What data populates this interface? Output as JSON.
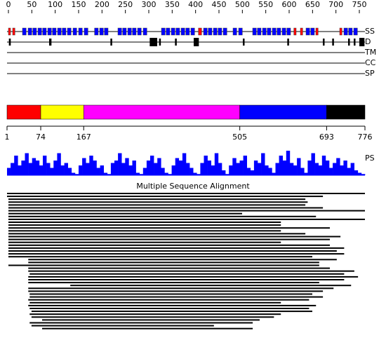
{
  "axis": {
    "lim": [
      0,
      750
    ],
    "ticks": [
      0,
      50,
      100,
      150,
      200,
      250,
      300,
      350,
      400,
      450,
      500,
      550,
      600,
      650,
      700,
      750
    ]
  },
  "tracks": {
    "ss": {
      "label": "SS",
      "helix_color": "#0000ff",
      "strand_color": "#ff0000",
      "helix": [
        [
          30,
          38
        ],
        [
          42,
          50
        ],
        [
          52,
          60
        ],
        [
          63,
          71
        ],
        [
          73,
          81
        ],
        [
          84,
          92
        ],
        [
          94,
          102
        ],
        [
          105,
          113
        ],
        [
          115,
          123
        ],
        [
          126,
          134
        ],
        [
          138,
          146
        ],
        [
          150,
          158
        ],
        [
          162,
          170
        ],
        [
          184,
          192
        ],
        [
          195,
          203
        ],
        [
          205,
          213
        ],
        [
          234,
          242
        ],
        [
          244,
          252
        ],
        [
          255,
          263
        ],
        [
          265,
          273
        ],
        [
          276,
          284
        ],
        [
          288,
          296
        ],
        [
          327,
          335
        ],
        [
          337,
          345
        ],
        [
          348,
          356
        ],
        [
          358,
          366
        ],
        [
          369,
          377
        ],
        [
          379,
          387
        ],
        [
          390,
          398
        ],
        [
          417,
          425
        ],
        [
          427,
          435
        ],
        [
          438,
          446
        ],
        [
          448,
          456
        ],
        [
          459,
          467
        ],
        [
          480,
          488
        ],
        [
          492,
          500
        ],
        [
          522,
          530
        ],
        [
          532,
          540
        ],
        [
          543,
          551
        ],
        [
          553,
          561
        ],
        [
          564,
          572
        ],
        [
          574,
          582
        ],
        [
          585,
          593
        ],
        [
          595,
          603
        ],
        [
          636,
          644
        ],
        [
          646,
          654
        ],
        [
          717,
          725
        ],
        [
          727,
          735
        ],
        [
          738,
          746
        ]
      ],
      "strand": [
        [
          0,
          4
        ],
        [
          9,
          14
        ],
        [
          406,
          413
        ],
        [
          610,
          615
        ],
        [
          624,
          629
        ],
        [
          657,
          662
        ],
        [
          708,
          713
        ]
      ]
    },
    "d": {
      "label": "D",
      "regions": [
        [
          1,
          5
        ],
        [
          87,
          92
        ],
        [
          218,
          221
        ],
        [
          302,
          318
        ],
        [
          322,
          324
        ],
        [
          356,
          359
        ],
        [
          396,
          407
        ],
        [
          501,
          504
        ],
        [
          596,
          599
        ],
        [
          672,
          674
        ],
        [
          692,
          695
        ],
        [
          726,
          729
        ],
        [
          738,
          741
        ],
        [
          750,
          761
        ]
      ]
    },
    "tm": {
      "label": "TM"
    },
    "cc": {
      "label": "CC"
    },
    "sp": {
      "label": "SP"
    }
  },
  "domains": {
    "boundaries": [
      1,
      74,
      167,
      505,
      693,
      776
    ],
    "colors": [
      "#ff0000",
      "#ffff00",
      "#ff00ff",
      "#0000ff",
      "#000000"
    ]
  },
  "ps": {
    "label": "PS",
    "color": "#0000ff",
    "values": [
      0.3,
      0.5,
      0.8,
      0.4,
      0.6,
      0.9,
      0.5,
      0.7,
      0.6,
      0.4,
      0.8,
      0.5,
      0.3,
      0.6,
      0.9,
      0.4,
      0.5,
      0.3,
      0.1,
      0.05,
      0.4,
      0.7,
      0.5,
      0.8,
      0.6,
      0.3,
      0.4,
      0.1,
      0.05,
      0.5,
      0.6,
      0.9,
      0.5,
      0.7,
      0.4,
      0.6,
      0.1,
      0.05,
      0.3,
      0.6,
      0.8,
      0.5,
      0.7,
      0.3,
      0.1,
      0.05,
      0.4,
      0.7,
      0.6,
      0.9,
      0.5,
      0.3,
      0.1,
      0.05,
      0.5,
      0.8,
      0.6,
      0.4,
      0.9,
      0.5,
      0.2,
      0.05,
      0.4,
      0.7,
      0.5,
      0.6,
      0.8,
      0.3,
      0.2,
      0.6,
      0.5,
      0.9,
      0.4,
      0.3,
      0.1,
      0.5,
      0.8,
      0.6,
      1.0,
      0.5,
      0.4,
      0.7,
      0.3,
      0.1,
      0.6,
      0.9,
      0.5,
      0.4,
      0.8,
      0.6,
      0.3,
      0.5,
      0.7,
      0.4,
      0.6,
      0.3,
      0.5,
      0.2,
      0.1,
      0.05
    ]
  },
  "msa": {
    "title": "Multiple Sequence Alignment",
    "rows": [
      [
        1,
        776
      ],
      [
        1,
        685
      ],
      [
        4,
        647
      ],
      [
        4,
        652
      ],
      [
        4,
        647
      ],
      [
        4,
        685
      ],
      [
        4,
        776
      ],
      [
        4,
        510
      ],
      [
        4,
        670
      ],
      [
        4,
        776
      ],
      [
        4,
        594
      ],
      [
        4,
        594
      ],
      [
        4,
        700
      ],
      [
        4,
        594
      ],
      [
        4,
        647
      ],
      [
        4,
        723
      ],
      [
        4,
        700
      ],
      [
        4,
        594
      ],
      [
        4,
        700
      ],
      [
        4,
        731
      ],
      [
        4,
        715
      ],
      [
        4,
        731
      ],
      [
        4,
        662
      ],
      [
        47,
        715
      ],
      [
        47,
        677
      ],
      [
        4,
        677
      ],
      [
        47,
        700
      ],
      [
        47,
        753
      ],
      [
        50,
        731
      ],
      [
        47,
        761
      ],
      [
        47,
        731
      ],
      [
        47,
        677
      ],
      [
        138,
        746
      ],
      [
        47,
        708
      ],
      [
        47,
        685
      ],
      [
        50,
        662
      ],
      [
        50,
        685
      ],
      [
        47,
        655
      ],
      [
        50,
        594
      ],
      [
        47,
        670
      ],
      [
        50,
        655
      ],
      [
        54,
        662
      ],
      [
        50,
        594
      ],
      [
        54,
        579
      ],
      [
        77,
        548
      ],
      [
        50,
        533
      ],
      [
        54,
        449
      ],
      [
        77,
        533
      ]
    ]
  }
}
